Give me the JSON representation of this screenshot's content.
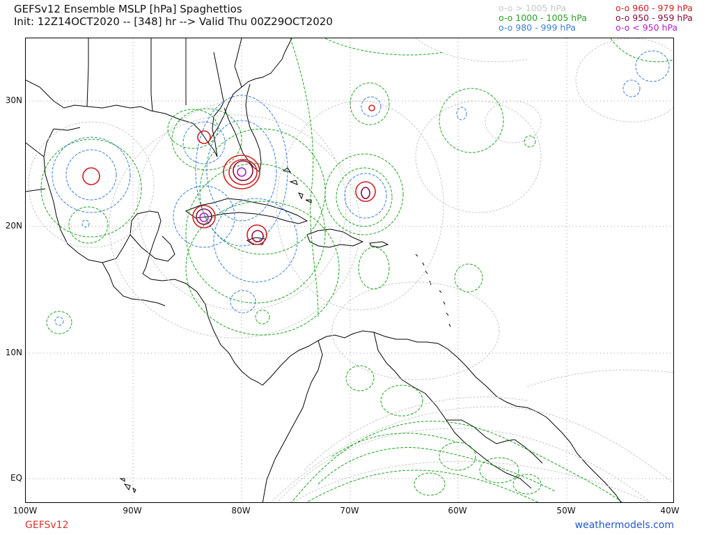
{
  "header": {
    "title_line1": "GEFSv12 Ensemble MSLP [hPa] Spaghettios",
    "title_line2": "Init: 12Z14OCT2020 -- [348] hr --> Valid Thu 00Z29OCT2020"
  },
  "legend": {
    "items": [
      {
        "label": "o-o > 1005 hPa",
        "color": "#c8c8c8"
      },
      {
        "label": "o-o 1000 - 1005 hPa",
        "color": "#22a322"
      },
      {
        "label": "o-o 980 - 999 hPa",
        "color": "#3a7fd5"
      },
      {
        "label": "o-o 960 - 979 hPa",
        "color": "#d02020"
      },
      {
        "label": "o-o 950 - 959 hPa",
        "color": "#8a0a3a"
      },
      {
        "label": "o-o < 950 hPa",
        "color": "#b020c0"
      }
    ]
  },
  "axes": {
    "lat_labels": [
      "30N",
      "20N",
      "10N",
      "EQ"
    ],
    "lon_labels": [
      "100W",
      "90W",
      "80W",
      "70W",
      "60W",
      "50W",
      "40W"
    ]
  },
  "footer": {
    "model": "GEFSv12",
    "site": "weathermodels.com"
  },
  "colors": {
    "coast": "#000000",
    "grid": "#9a9a9a"
  }
}
